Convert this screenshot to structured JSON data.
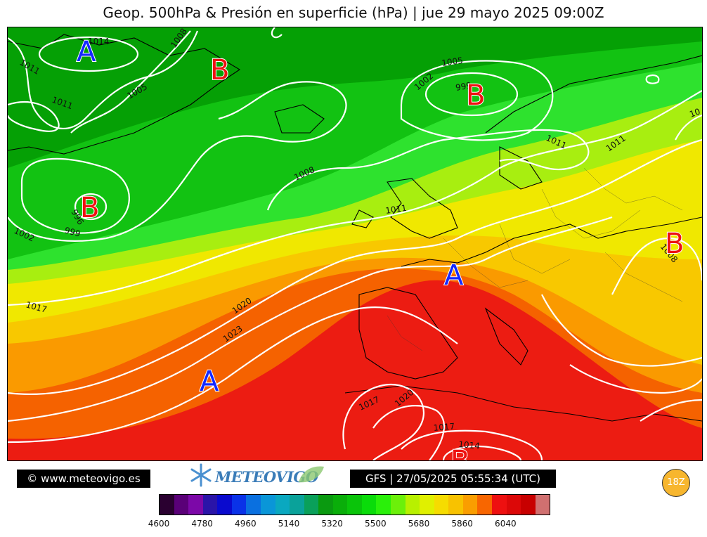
{
  "title": "Geop. 500hPa & Presión en superficie (hPa) | jue 29 mayo 2025 09:00Z",
  "copyright": "© www.meteovigo.es",
  "logo_text": "METEOVIGO",
  "model_info": "GFS | 27/05/2025 05:55:34 (UTC)",
  "run_badge": "18Z",
  "colors": {
    "deep_green": "#05a005",
    "green": "#12c212",
    "light_green": "#2ee22e",
    "yellow_green": "#a8ee10",
    "yellow": "#f0e800",
    "gold": "#f8c800",
    "orange": "#fa9a00",
    "dark_orange": "#f56200",
    "red": "#ec1c12",
    "high_label": "#1428ff",
    "low_label": "#ee1111"
  },
  "colorbar": {
    "colors": [
      "#2a0030",
      "#5a0078",
      "#7c08a8",
      "#2a14a8",
      "#0a0ace",
      "#0a32e8",
      "#0a70e0",
      "#0a96d8",
      "#0aa8c0",
      "#0aa29a",
      "#0aa05a",
      "#0a9a10",
      "#0aae0a",
      "#0ac40a",
      "#0adc0a",
      "#2af00a",
      "#6cf00a",
      "#b8f000",
      "#e0f000",
      "#f6dc00",
      "#f8c200",
      "#fa9e00",
      "#f86600",
      "#ee1010",
      "#dc0808",
      "#c80000",
      "#d07070"
    ],
    "tick_labels": [
      "4600",
      "4780",
      "4960",
      "5140",
      "5320",
      "5500",
      "5680",
      "5860",
      "6040"
    ]
  },
  "pressure_systems": [
    {
      "type": "A",
      "kind": "high"
    },
    {
      "type": "B",
      "kind": "low"
    },
    {
      "type": "B",
      "kind": "low"
    },
    {
      "type": "B",
      "kind": "low"
    },
    {
      "type": "A",
      "kind": "high"
    },
    {
      "type": "A",
      "kind": "high"
    },
    {
      "type": "B",
      "kind": "low"
    },
    {
      "type": "B",
      "kind": "low"
    }
  ],
  "isobar_labels": [
    "1014",
    "1011",
    "1011",
    "1008",
    "1005",
    "1005",
    "1002",
    "999",
    "1011",
    "1011",
    "1008",
    "996",
    "999",
    "1002",
    "1011",
    "1008",
    "1017",
    "1020",
    "1023",
    "1017",
    "1020",
    "1017",
    "1014",
    "10"
  ]
}
